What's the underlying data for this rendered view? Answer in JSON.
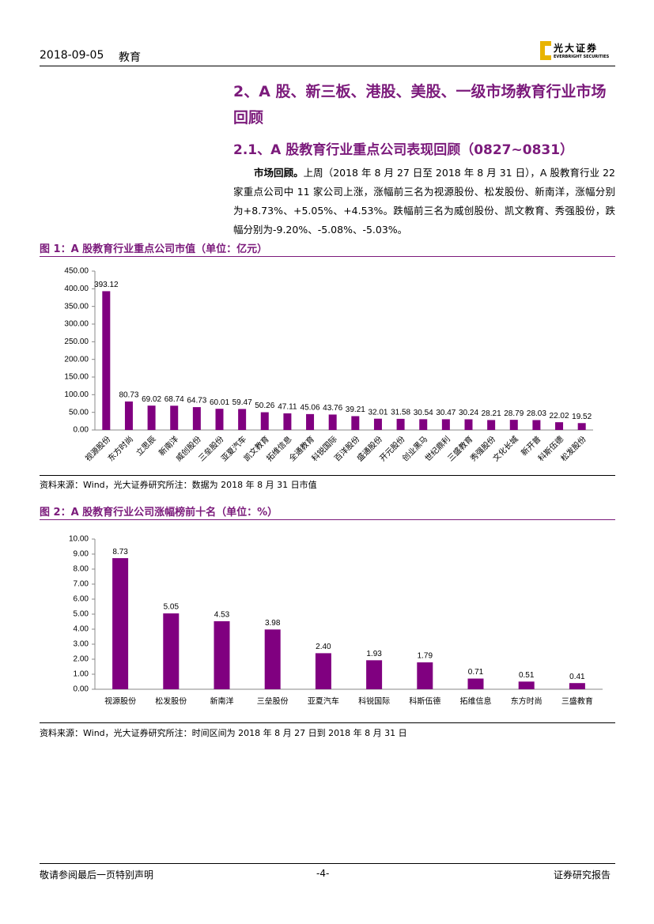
{
  "header": {
    "date": "2018-09-05",
    "sector": "教育",
    "logo_cn": "光大证券",
    "logo_en": "EVERBRIGHT SECURITIES"
  },
  "section_title": "2、A 股、新三板、港股、美股、一级市场教育行业市场回顾",
  "subsection_title": "2.1、A 股教育行业重点公司表现回顾（0827~0831）",
  "paragraph": {
    "lead": "市场回顾。",
    "text": "上周（2018 年 8 月 27 日至 2018 年 8 月 31 日），A 股教育行业 22 家重点公司中 11 家公司上涨，涨幅前三名为视源股份、松发股份、新南洋，涨幅分别为+8.73%、+5.05%、+4.53%。跌幅前三名为威创股份、凯文教育、秀强股份，跌幅分别为-9.20%、-5.08%、-5.03%。"
  },
  "chart_data": [
    {
      "type": "bar",
      "title": "图 1：A 股教育行业重点公司市值（单位：亿元）",
      "categories": [
        "视源股份",
        "东方时尚",
        "立思辰",
        "新南洋",
        "威创股份",
        "三垒股份",
        "亚夏汽车",
        "凯文教育",
        "拓维信息",
        "全通教育",
        "科锐国际",
        "百洋股份",
        "盛通股份",
        "开元股份",
        "创业黑马",
        "世纪鼎利",
        "三盛教育",
        "秀强股份",
        "文化长城",
        "新开普",
        "科斯伍德",
        "松发股份"
      ],
      "values": [
        393.12,
        80.73,
        69.02,
        68.74,
        64.73,
        60.01,
        59.47,
        50.26,
        47.11,
        45.06,
        43.76,
        39.21,
        32.01,
        31.58,
        30.54,
        30.47,
        30.24,
        28.21,
        28.79,
        28.03,
        22.02,
        19.52
      ],
      "color": "#800080",
      "ylim": [
        0,
        450
      ],
      "yticks": [
        {
          "value": 0,
          "label": "0.00"
        },
        {
          "value": 50,
          "label": "50.00"
        },
        {
          "value": 100,
          "label": "100.00"
        },
        {
          "value": 150,
          "label": "150.00"
        },
        {
          "value": 200,
          "label": "200.00"
        },
        {
          "value": 250,
          "label": "250.00"
        },
        {
          "value": 300,
          "label": "300.00"
        },
        {
          "value": 350,
          "label": "350.00"
        },
        {
          "value": 400,
          "label": "400.00"
        },
        {
          "value": 450,
          "label": "450.00"
        }
      ],
      "source": "资料来源：Wind，光大证券研究所注：数据为 2018 年 8 月 31 日市值"
    },
    {
      "type": "bar",
      "title": "图 2：A 股教育行业公司涨幅榜前十名（单位：%）",
      "categories": [
        "视源股份",
        "松发股份",
        "新南洋",
        "三垒股份",
        "亚夏汽车",
        "科锐国际",
        "科斯伍德",
        "拓维信息",
        "东方时尚",
        "三盛教育"
      ],
      "values": [
        8.73,
        5.05,
        4.53,
        3.98,
        2.4,
        1.93,
        1.79,
        0.71,
        0.51,
        0.41
      ],
      "value_labels": [
        "8.73",
        "5.05",
        "4.53",
        "3.98",
        "2.40",
        "1.93",
        "1.79",
        "0.71",
        "0.51",
        "0.41"
      ],
      "color": "#800080",
      "ylim": [
        0,
        10
      ],
      "yticks": [
        {
          "value": 0,
          "label": "0.00"
        },
        {
          "value": 1,
          "label": "1.00"
        },
        {
          "value": 2,
          "label": "2.00"
        },
        {
          "value": 3,
          "label": "3.00"
        },
        {
          "value": 4,
          "label": "4.00"
        },
        {
          "value": 5,
          "label": "5.00"
        },
        {
          "value": 6,
          "label": "6.00"
        },
        {
          "value": 7,
          "label": "7.00"
        },
        {
          "value": 8,
          "label": "8.00"
        },
        {
          "value": 9,
          "label": "9.00"
        },
        {
          "value": 10,
          "label": "10.00"
        }
      ],
      "source": "资料来源：Wind，光大证券研究所注：时间区间为 2018 年 8 月 27 日到 2018 年 8 月 31 日"
    }
  ],
  "footer": {
    "disclaimer": "敬请参阅最后一页特别声明",
    "page": "-4-",
    "report_type": "证券研究报告"
  }
}
